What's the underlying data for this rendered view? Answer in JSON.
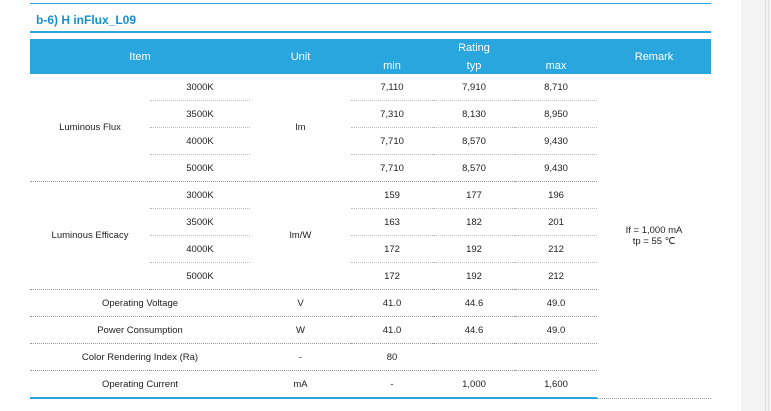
{
  "section_title": "b-6) H inFlux_L09",
  "headers": {
    "item": "Item",
    "unit": "Unit",
    "rating": "Rating",
    "min": "min",
    "typ": "typ",
    "max": "max",
    "remark": "Remark"
  },
  "luminous_flux": {
    "label": "Luminous Flux",
    "unit": "lm",
    "rows": [
      {
        "cct": "3000K",
        "min": "7,110",
        "typ": "7,910",
        "max": "8,710"
      },
      {
        "cct": "3500K",
        "min": "7,310",
        "typ": "8,130",
        "max": "8,950"
      },
      {
        "cct": "4000K",
        "min": "7,710",
        "typ": "8,570",
        "max": "9,430"
      },
      {
        "cct": "5000K",
        "min": "7,710",
        "typ": "8,570",
        "max": "9,430"
      }
    ]
  },
  "luminous_efficacy": {
    "label": "Luminous Efficacy",
    "unit": "lm/W",
    "rows": [
      {
        "cct": "3000K",
        "min": "159",
        "typ": "177",
        "max": "196"
      },
      {
        "cct": "3500K",
        "min": "163",
        "typ": "182",
        "max": "201"
      },
      {
        "cct": "4000K",
        "min": "172",
        "typ": "192",
        "max": "212"
      },
      {
        "cct": "5000K",
        "min": "172",
        "typ": "192",
        "max": "212"
      }
    ]
  },
  "others": [
    {
      "item": "Operating Voltage",
      "unit": "V",
      "min": "41.0",
      "typ": "44.6",
      "max": "49.0"
    },
    {
      "item": "Power Consumption",
      "unit": "W",
      "min": "41.0",
      "typ": "44.6",
      "max": "49.0"
    },
    {
      "item": "Color Rendering Index (Ra)",
      "unit": "-",
      "min": "80",
      "typ": "",
      "max": ""
    },
    {
      "item": "Operating Current",
      "unit": "mA",
      "min": "-",
      "typ": "1,000",
      "max": "1,600"
    }
  ],
  "remark": {
    "line1": "If = 1,000 mA",
    "line2": "tp = 55 ℃"
  },
  "colors": {
    "accent": "#2aa6de",
    "title": "#1a8fd0"
  }
}
